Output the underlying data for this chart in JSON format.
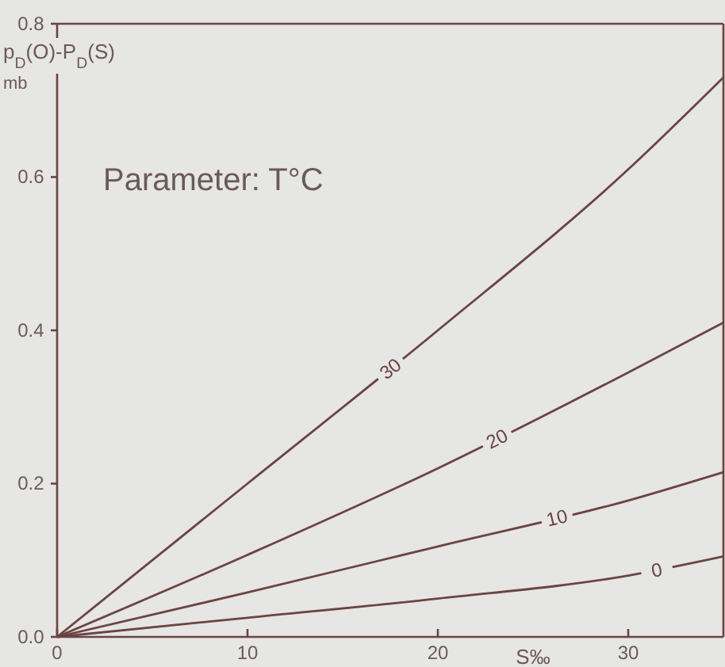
{
  "chart_data": {
    "type": "line",
    "xlabel": "S‰",
    "ylabel": "p$_{D}$(O)-P$_{D}$(S)",
    "annotations": [
      "mb",
      "Parameter: T°C"
    ],
    "x": [
      0,
      10,
      20,
      30,
      35
    ],
    "xlim": [
      0,
      35
    ],
    "xticks": [
      0,
      10,
      20,
      30
    ],
    "ylim": [
      0,
      0.8
    ],
    "yticks": [
      {
        "value": 0,
        "label": "0.0"
      },
      {
        "value": 0.2,
        "label": "0.2"
      },
      {
        "value": 0.4,
        "label": "0.4"
      },
      {
        "value": 0.6,
        "label": "0.6"
      },
      {
        "value": 0.8,
        "label": "0.8"
      }
    ],
    "grid": false,
    "legend": false,
    "marker": "none",
    "line_style": "solid",
    "series": [
      {
        "name": "30",
        "color": "#6b4444",
        "values": [
          0,
          0.2,
          0.4,
          0.61,
          0.73
        ]
      },
      {
        "name": "20",
        "color": "#6b4444",
        "values": [
          0,
          0.107,
          0.22,
          0.345,
          0.41
        ]
      },
      {
        "name": "10",
        "color": "#6b4444",
        "values": [
          0,
          0.058,
          0.118,
          0.178,
          0.215
        ]
      },
      {
        "name": "0",
        "color": "#6b4444",
        "values": [
          0,
          0.025,
          0.05,
          0.08,
          0.105
        ]
      }
    ]
  }
}
